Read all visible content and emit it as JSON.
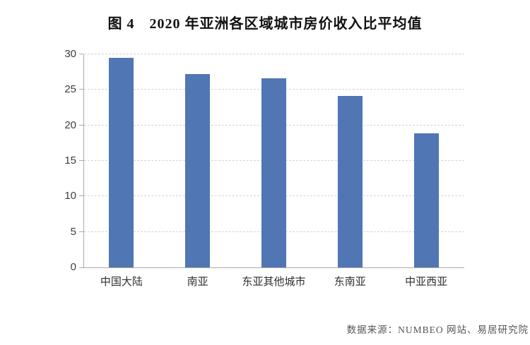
{
  "figure": {
    "title": "图 4　2020 年亚洲各区域城市房价收入比平均值",
    "source_note": "数据来源：NUMBEO 网站、易居研究院"
  },
  "chart_data": {
    "type": "bar",
    "title": "图 4　2020 年亚洲各区域城市房价收入比平均值",
    "categories": [
      "中国大陆",
      "南亚",
      "东亚其他城市",
      "东南亚",
      "中亚西亚"
    ],
    "values": [
      29.5,
      27.2,
      26.6,
      24.1,
      18.9
    ],
    "xlabel": "",
    "ylabel": "",
    "ylim": [
      0,
      30
    ],
    "yticks": [
      0,
      5,
      10,
      15,
      20,
      25,
      30
    ],
    "grid": "horizontal-dashed",
    "legend": "none",
    "bar_color": "#5076b4",
    "source_note": "数据来源：NUMBEO 网站、易居研究院"
  }
}
